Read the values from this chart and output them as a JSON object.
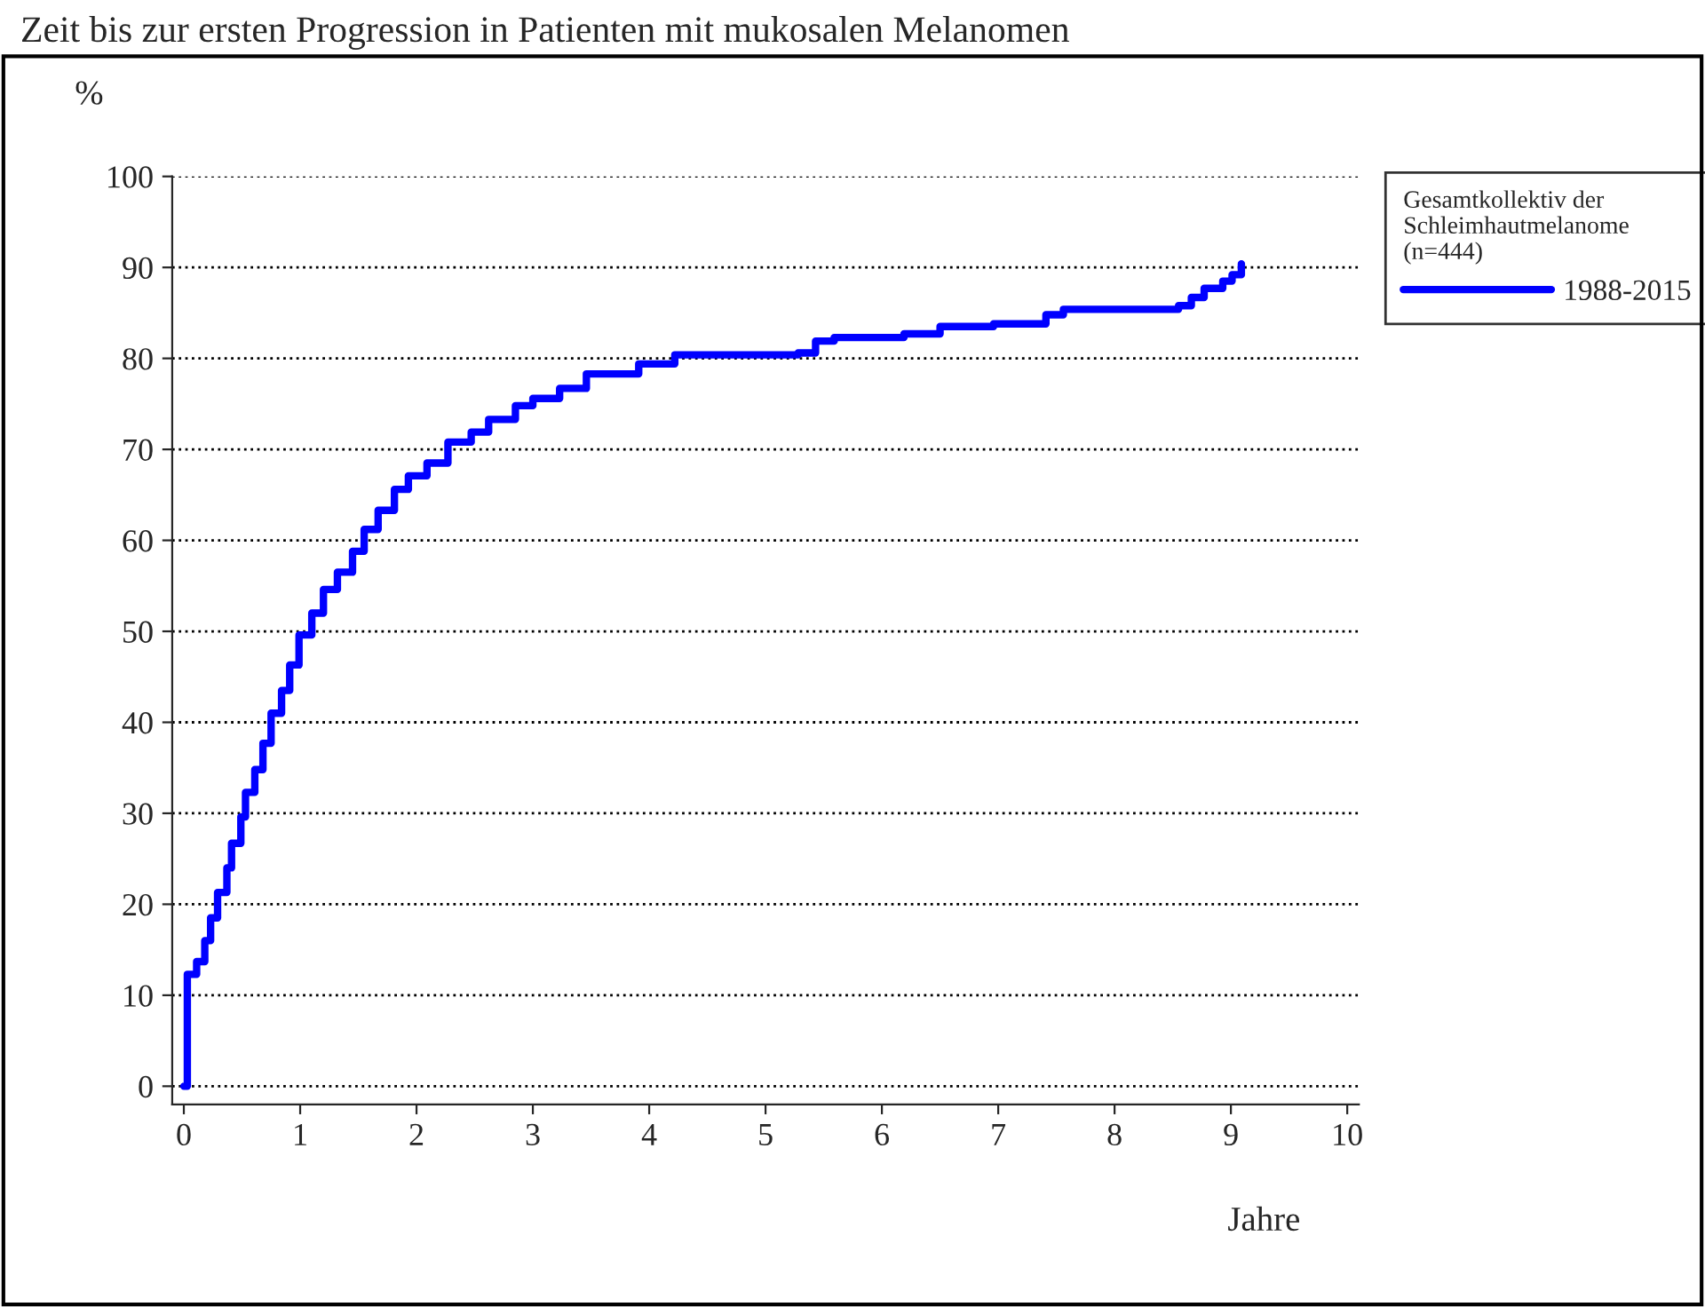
{
  "chart_data": {
    "type": "step",
    "title": "Zeit bis zur ersten Progression in Patienten mit mukosalen Melanomen",
    "xlabel": "Jahre",
    "ylabel": "%",
    "legend_title": "Gesamtkollektiv der\nSchleimhautmelanome\n(n=444)",
    "x": [
      0,
      0.03,
      0.11,
      0.18,
      0.23,
      0.29,
      0.37,
      0.41,
      0.49,
      0.53,
      0.61,
      0.68,
      0.75,
      0.84,
      0.91,
      0.99,
      1.1,
      1.2,
      1.32,
      1.45,
      1.55,
      1.67,
      1.81,
      1.93,
      2.09,
      2.27,
      2.47,
      2.62,
      2.85,
      3.0,
      3.23,
      3.46,
      3.91,
      4.22,
      5.28,
      5.43,
      5.59,
      6.19,
      6.5,
      6.96,
      7.41,
      7.56,
      8.55,
      8.66,
      8.77,
      8.93,
      9.01,
      9.09
    ],
    "series": [
      {
        "name": "1988-2015",
        "color": "#0000ff",
        "values": [
          0,
          12.3,
          13.7,
          16,
          18.5,
          21.3,
          24,
          26.7,
          29.6,
          32.3,
          34.8,
          37.7,
          41,
          43.5,
          46.3,
          49.6,
          52,
          54.6,
          56.5,
          58.8,
          61.2,
          63.3,
          65.6,
          67.1,
          68.5,
          70.8,
          71.9,
          73.3,
          74.8,
          75.6,
          76.7,
          78.3,
          79.4,
          80.4,
          80.6,
          81.9,
          82.3,
          82.7,
          83.5,
          83.8,
          84.8,
          85.4,
          85.8,
          86.7,
          87.7,
          88.5,
          89.2,
          90.4
        ]
      }
    ],
    "xlim": [
      -0.1,
      10.1
    ],
    "ylim": [
      -2,
      100
    ],
    "xticks": [
      0,
      1,
      2,
      3,
      4,
      5,
      6,
      7,
      8,
      9,
      10
    ],
    "yticks": [
      0,
      10,
      20,
      30,
      40,
      50,
      60,
      70,
      80,
      90,
      100
    ],
    "grid": "y",
    "legend": "top right",
    "line_style": "solid",
    "marker": "none"
  }
}
